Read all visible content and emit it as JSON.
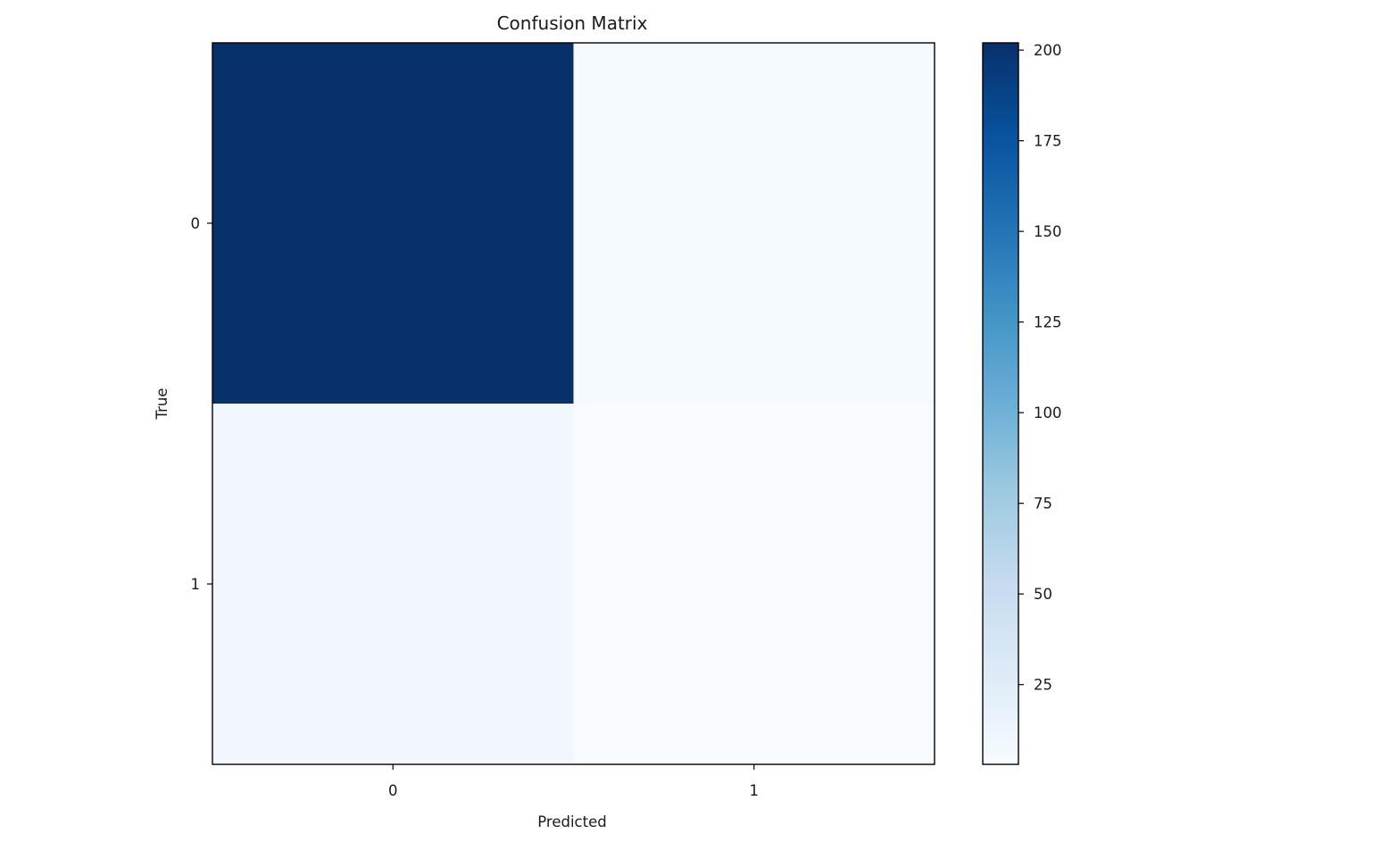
{
  "chart_data": {
    "type": "heatmap",
    "title": "Confusion Matrix",
    "xlabel": "Predicted",
    "ylabel": "True",
    "x_categories": [
      "0",
      "1"
    ],
    "y_categories": [
      "0",
      "1"
    ],
    "values": [
      [
        202,
        5
      ],
      [
        9,
        3
      ]
    ],
    "colormap": "Blues",
    "colorbar": {
      "min": 3,
      "max": 202,
      "ticks": [
        25,
        50,
        75,
        100,
        125,
        150,
        175,
        200
      ]
    },
    "colors": {
      "axis": "#000000",
      "text": "#1a1a1a",
      "colormap_stops": [
        "#f7fbff",
        "#deebf7",
        "#c6dbef",
        "#9ecae1",
        "#6baed6",
        "#4292c6",
        "#2171b5",
        "#08519c",
        "#08306b"
      ]
    }
  }
}
